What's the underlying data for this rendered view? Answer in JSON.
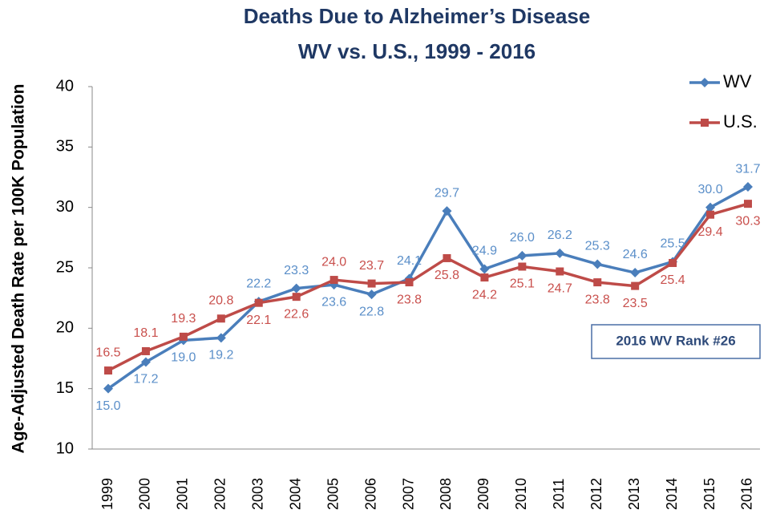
{
  "chart_data": {
    "type": "line",
    "title": "Deaths Due to Alzheimer’s Disease",
    "subtitle": "WV vs. U.S., 1999 - 2016",
    "y_label": "Age-Adjusted Death Rate per 100K Population",
    "annotation": "2016 WV Rank #26",
    "categories": [
      "1999",
      "2000",
      "2001",
      "2002",
      "2003",
      "2004",
      "2005",
      "2006",
      "2007",
      "2008",
      "2009",
      "2010",
      "2011",
      "2012",
      "2013",
      "2014",
      "2015",
      "2016"
    ],
    "series": [
      {
        "name": "WV",
        "color": "#4a7ebb",
        "marker": "diamond",
        "values": [
          15.0,
          17.2,
          19.0,
          19.2,
          22.2,
          23.3,
          23.6,
          22.8,
          24.1,
          29.7,
          24.9,
          26.0,
          26.2,
          25.3,
          24.6,
          25.5,
          30.0,
          31.7
        ],
        "value_labels": [
          "15.0",
          "17.2",
          "19.0",
          "19.2",
          "22.2",
          "23.3",
          "23.6",
          "22.8",
          "24.1",
          "29.7",
          "24.9",
          "26.0",
          "26.2",
          "25.3",
          "24.6",
          "25.5",
          "30.0",
          "31.7"
        ]
      },
      {
        "name": "U.S.",
        "color": "#be4b48",
        "marker": "square",
        "values": [
          16.5,
          18.1,
          19.3,
          20.8,
          22.1,
          22.6,
          24.0,
          23.7,
          23.8,
          25.8,
          24.2,
          25.1,
          24.7,
          23.8,
          23.5,
          25.4,
          29.4,
          30.3
        ],
        "value_labels": [
          "16.5",
          "18.1",
          "19.3",
          "20.8",
          "22.1",
          "22.6",
          "24.0",
          "23.7",
          "23.8",
          "25.8",
          "24.2",
          "25.1",
          "24.7",
          "23.8",
          "23.5",
          "25.4",
          "29.4",
          "30.3"
        ]
      }
    ],
    "ylim": [
      10,
      40
    ],
    "yticks": [
      10,
      15,
      20,
      25,
      30,
      35,
      40
    ],
    "legend": "top-right",
    "grid": false
  }
}
